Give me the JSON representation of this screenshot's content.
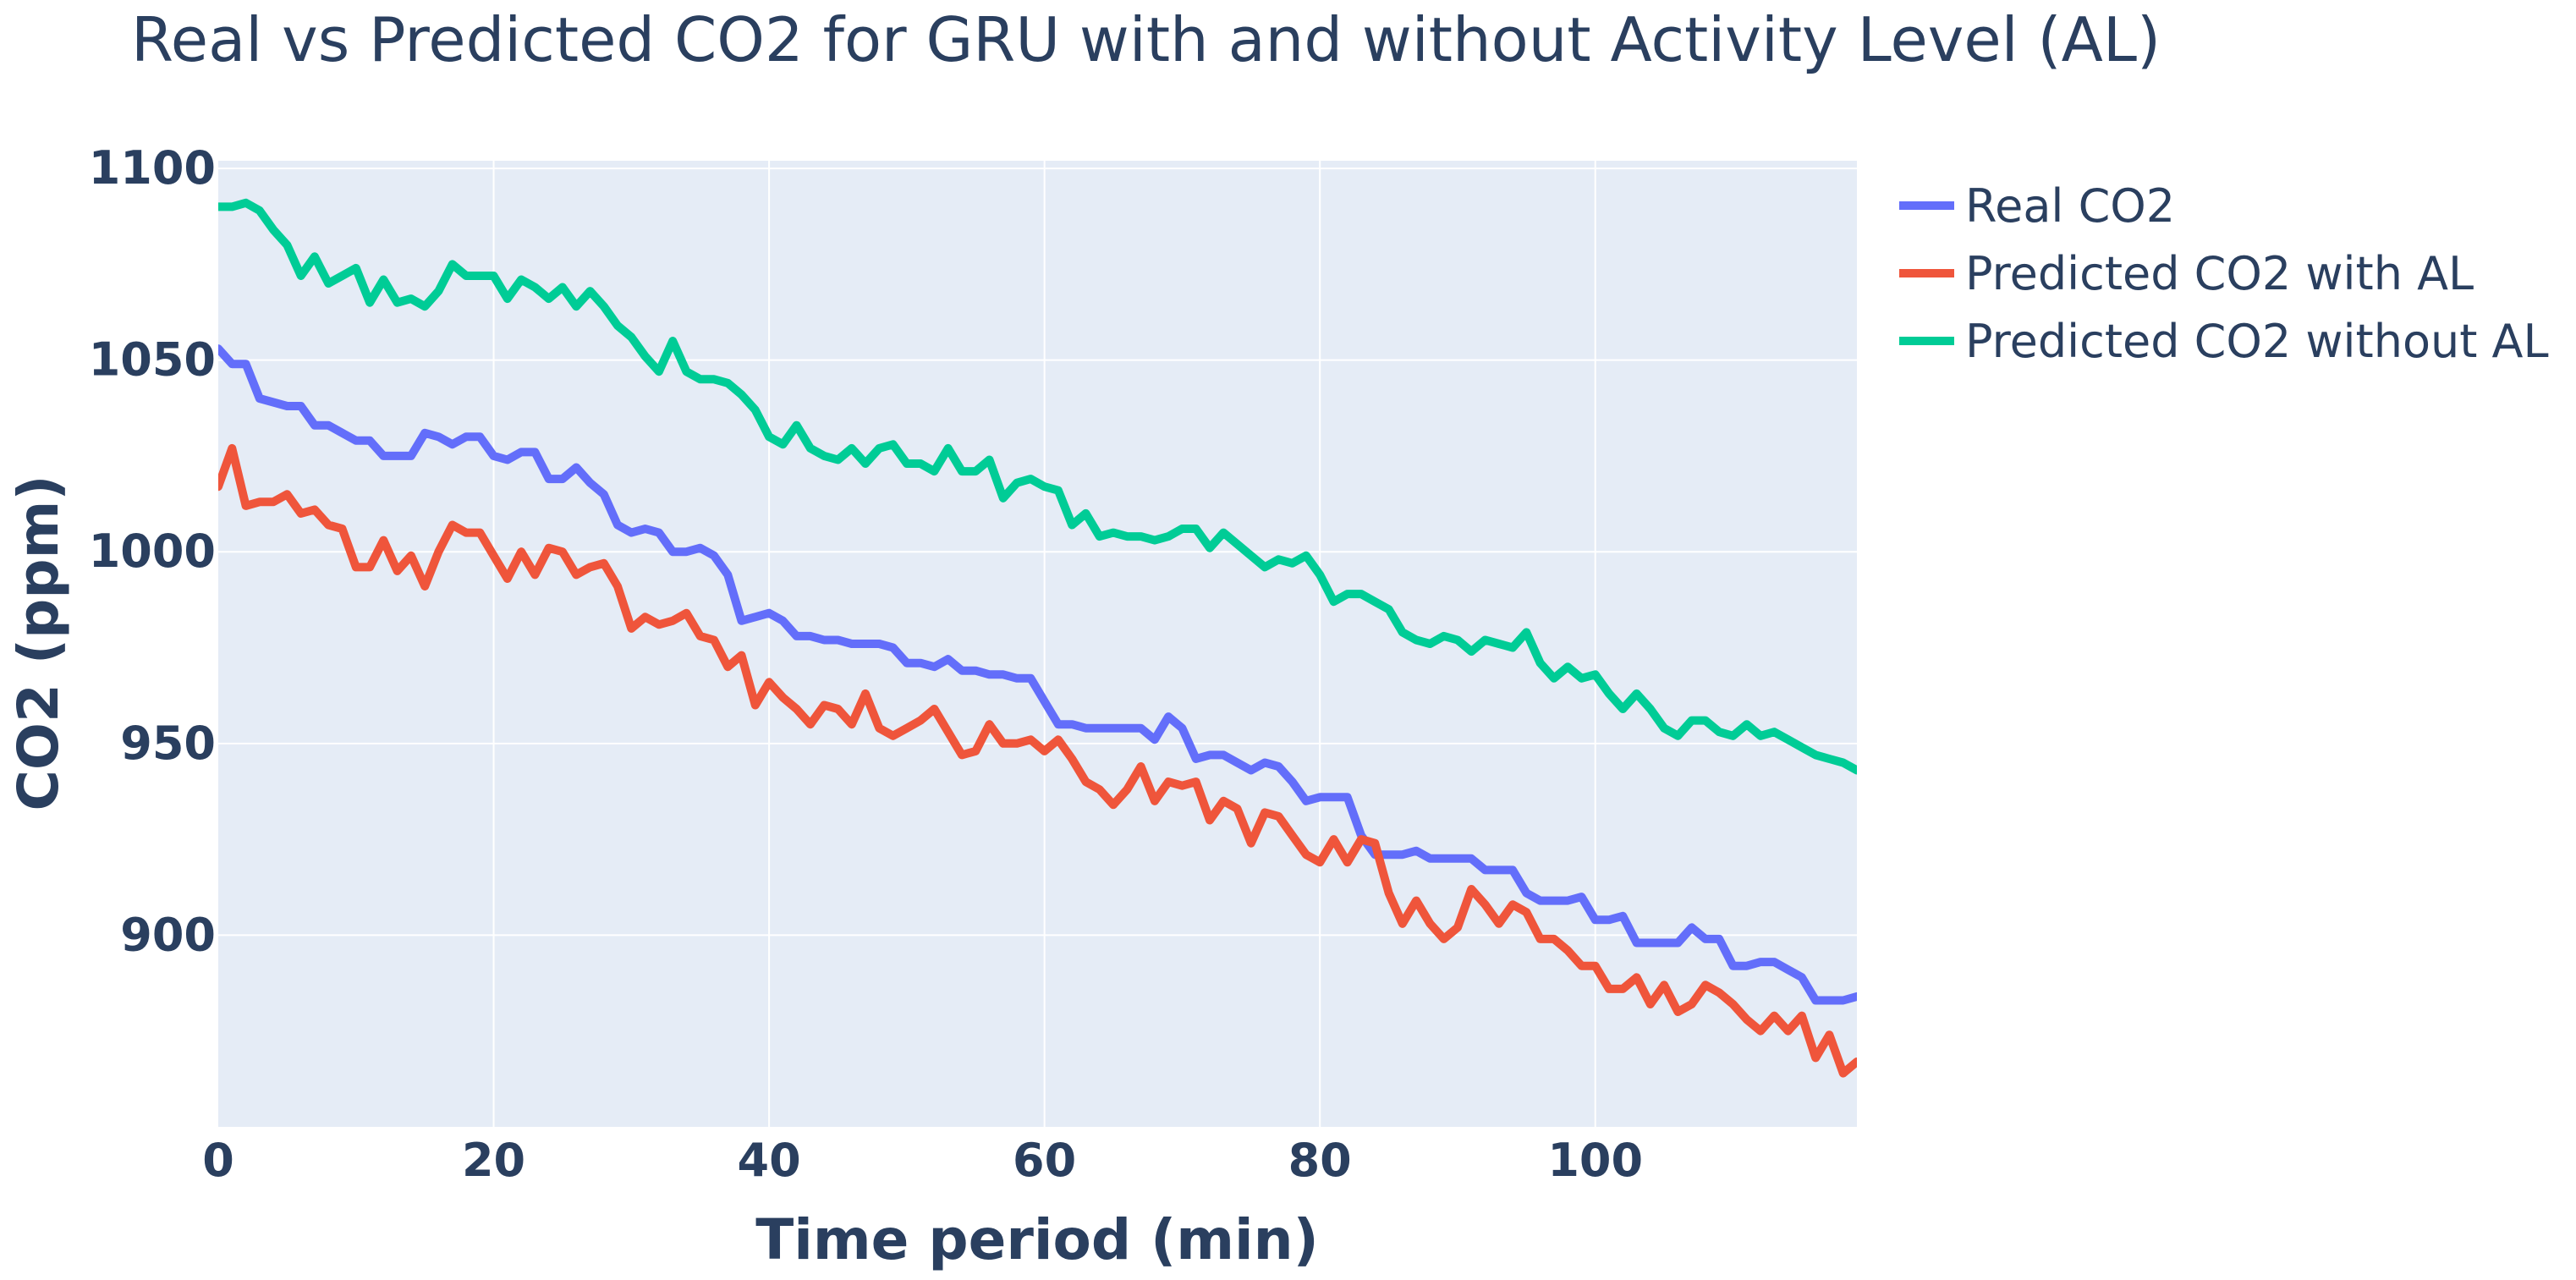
{
  "chart_data": {
    "type": "line",
    "title": "Real vs Predicted CO2 for GRU with and without Activity Level (AL)",
    "xlabel": "Time period (min)",
    "ylabel": "CO2 (ppm)",
    "xlim": [
      0,
      119
    ],
    "ylim": [
      850,
      1102
    ],
    "x_ticks": [
      "0",
      "20",
      "40",
      "60",
      "80",
      "100"
    ],
    "y_ticks": [
      "900",
      "950",
      "1000",
      "1050",
      "1100"
    ],
    "grid": true,
    "legend_position": "right",
    "plot_background": "#e5ecf6",
    "series": [
      {
        "name": "Real CO2",
        "color": "#636efa",
        "x": [
          0,
          1,
          2,
          3,
          4,
          5,
          6,
          7,
          8,
          9,
          10,
          11,
          12,
          13,
          14,
          15,
          16,
          17,
          18,
          19,
          20,
          21,
          22,
          23,
          24,
          25,
          26,
          27,
          28,
          29,
          30,
          31,
          32,
          33,
          34,
          35,
          36,
          37,
          38,
          39,
          40,
          41,
          42,
          43,
          44,
          45,
          46,
          47,
          48,
          49,
          50,
          51,
          52,
          53,
          54,
          55,
          56,
          57,
          58,
          59,
          60,
          61,
          62,
          63,
          64,
          65,
          66,
          67,
          68,
          69,
          70,
          71,
          72,
          73,
          74,
          75,
          76,
          77,
          78,
          79,
          80,
          81,
          82,
          83,
          84,
          85,
          86,
          87,
          88,
          89,
          90,
          91,
          92,
          93,
          94,
          95,
          96,
          97,
          98,
          99,
          100,
          101,
          102,
          103,
          104,
          105,
          106,
          107,
          108,
          109,
          110,
          111,
          112,
          113,
          114,
          115,
          116,
          117,
          118,
          119
        ],
        "y": [
          1053,
          1049,
          1049,
          1040,
          1039,
          1038,
          1038,
          1033,
          1033,
          1031,
          1029,
          1029,
          1025,
          1025,
          1025,
          1031,
          1030,
          1028,
          1030,
          1030,
          1025,
          1024,
          1026,
          1026,
          1019,
          1019,
          1022,
          1018,
          1015,
          1007,
          1005,
          1006,
          1005,
          1000,
          1000,
          1001,
          999,
          994,
          982,
          983,
          984,
          982,
          978,
          978,
          977,
          977,
          976,
          976,
          976,
          975,
          971,
          971,
          970,
          972,
          969,
          969,
          968,
          968,
          967,
          967,
          961,
          955,
          955,
          954,
          954,
          954,
          954,
          954,
          951,
          957,
          954,
          946,
          947,
          947,
          945,
          943,
          945,
          944,
          940,
          935,
          936,
          936,
          936,
          926,
          921,
          921,
          921,
          922,
          920,
          920,
          920,
          920,
          917,
          917,
          917,
          911,
          909,
          909,
          909,
          910,
          904,
          904,
          905,
          898,
          898,
          898,
          898,
          902,
          899,
          899,
          892,
          892,
          893,
          893,
          891,
          889,
          883,
          883,
          883,
          884
        ]
      },
      {
        "name": "Predicted CO2 with AL",
        "color": "#ef553b",
        "x": [
          0,
          1,
          2,
          3,
          4,
          5,
          6,
          7,
          8,
          9,
          10,
          11,
          12,
          13,
          14,
          15,
          16,
          17,
          18,
          19,
          20,
          21,
          22,
          23,
          24,
          25,
          26,
          27,
          28,
          29,
          30,
          31,
          32,
          33,
          34,
          35,
          36,
          37,
          38,
          39,
          40,
          41,
          42,
          43,
          44,
          45,
          46,
          47,
          48,
          49,
          50,
          51,
          52,
          53,
          54,
          55,
          56,
          57,
          58,
          59,
          60,
          61,
          62,
          63,
          64,
          65,
          66,
          67,
          68,
          69,
          70,
          71,
          72,
          73,
          74,
          75,
          76,
          77,
          78,
          79,
          80,
          81,
          82,
          83,
          84,
          85,
          86,
          87,
          88,
          89,
          90,
          91,
          92,
          93,
          94,
          95,
          96,
          97,
          98,
          99,
          100,
          101,
          102,
          103,
          104,
          105,
          106,
          107,
          108,
          109,
          110,
          111,
          112,
          113,
          114,
          115,
          116,
          117,
          118,
          119
        ],
        "y": [
          1017,
          1027,
          1012,
          1013,
          1013,
          1015,
          1010,
          1011,
          1007,
          1006,
          996,
          996,
          1003,
          995,
          999,
          991,
          1000,
          1007,
          1005,
          1005,
          999,
          993,
          1000,
          994,
          1001,
          1000,
          994,
          996,
          997,
          991,
          980,
          983,
          981,
          982,
          984,
          978,
          977,
          970,
          973,
          960,
          966,
          962,
          959,
          955,
          960,
          959,
          955,
          963,
          954,
          952,
          954,
          956,
          959,
          953,
          947,
          948,
          955,
          950,
          950,
          951,
          948,
          951,
          946,
          940,
          938,
          934,
          938,
          944,
          935,
          940,
          939,
          940,
          930,
          935,
          933,
          924,
          932,
          931,
          926,
          921,
          919,
          925,
          919,
          925,
          924,
          911,
          903,
          909,
          903,
          899,
          902,
          912,
          908,
          903,
          908,
          906,
          899,
          899,
          896,
          892,
          892,
          886,
          886,
          889,
          882,
          887,
          880,
          882,
          887,
          885,
          882,
          878,
          875,
          879,
          875,
          879,
          868,
          874,
          864,
          867
        ]
      },
      {
        "name": "Predicted CO2 without AL",
        "color": "#00cc96",
        "x": [
          0,
          1,
          2,
          3,
          4,
          5,
          6,
          7,
          8,
          9,
          10,
          11,
          12,
          13,
          14,
          15,
          16,
          17,
          18,
          19,
          20,
          21,
          22,
          23,
          24,
          25,
          26,
          27,
          28,
          29,
          30,
          31,
          32,
          33,
          34,
          35,
          36,
          37,
          38,
          39,
          40,
          41,
          42,
          43,
          44,
          45,
          46,
          47,
          48,
          49,
          50,
          51,
          52,
          53,
          54,
          55,
          56,
          57,
          58,
          59,
          60,
          61,
          62,
          63,
          64,
          65,
          66,
          67,
          68,
          69,
          70,
          71,
          72,
          73,
          74,
          75,
          76,
          77,
          78,
          79,
          80,
          81,
          82,
          83,
          84,
          85,
          86,
          87,
          88,
          89,
          90,
          91,
          92,
          93,
          94,
          95,
          96,
          97,
          98,
          99,
          100,
          101,
          102,
          103,
          104,
          105,
          106,
          107,
          108,
          109,
          110,
          111,
          112,
          113,
          114,
          115,
          116,
          117,
          118,
          119
        ],
        "y": [
          1090,
          1090,
          1091,
          1089,
          1084,
          1080,
          1072,
          1077,
          1070,
          1072,
          1074,
          1065,
          1071,
          1065,
          1066,
          1064,
          1068,
          1075,
          1072,
          1072,
          1072,
          1066,
          1071,
          1069,
          1066,
          1069,
          1064,
          1068,
          1064,
          1059,
          1056,
          1051,
          1047,
          1055,
          1047,
          1045,
          1045,
          1044,
          1041,
          1037,
          1030,
          1028,
          1033,
          1027,
          1025,
          1024,
          1027,
          1023,
          1027,
          1028,
          1023,
          1023,
          1021,
          1027,
          1021,
          1021,
          1024,
          1014,
          1018,
          1019,
          1017,
          1016,
          1007,
          1010,
          1004,
          1005,
          1004,
          1004,
          1003,
          1004,
          1006,
          1006,
          1001,
          1005,
          1002,
          999,
          996,
          998,
          997,
          999,
          994,
          987,
          989,
          989,
          987,
          985,
          979,
          977,
          976,
          978,
          977,
          974,
          977,
          976,
          975,
          979,
          971,
          967,
          970,
          967,
          968,
          963,
          959,
          963,
          959,
          954,
          952,
          956,
          956,
          953,
          952,
          955,
          952,
          953,
          951,
          949,
          947,
          946,
          945,
          943
        ]
      }
    ]
  }
}
